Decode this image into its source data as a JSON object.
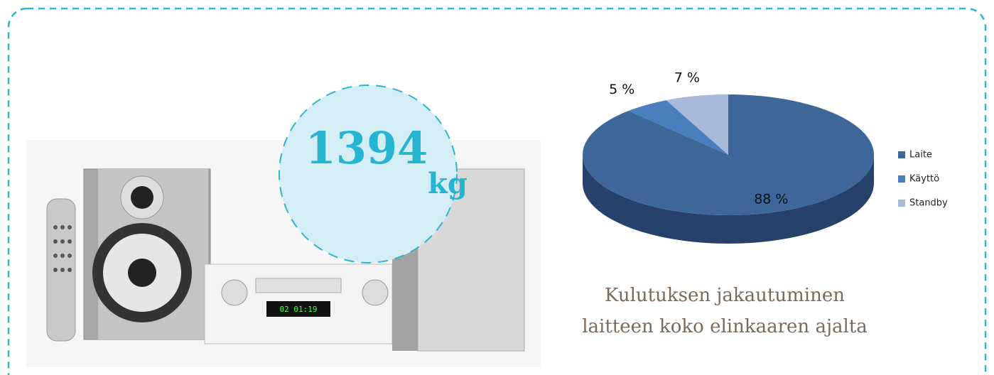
{
  "badge": {
    "number": "1394",
    "unit": "kg"
  },
  "caption": [
    "Kulutuksen jakautuminen",
    "laitteen koko elinkaaren ajalta"
  ],
  "chart_data": {
    "type": "pie",
    "categories": [
      "Laite",
      "Käyttö",
      "Standby"
    ],
    "values": [
      88,
      5,
      7
    ],
    "value_labels": [
      "88 %",
      "5 %",
      "7 %"
    ],
    "colors": [
      "#3d6699",
      "#4a7ebf",
      "#a9b9d9"
    ],
    "legend": "right"
  }
}
